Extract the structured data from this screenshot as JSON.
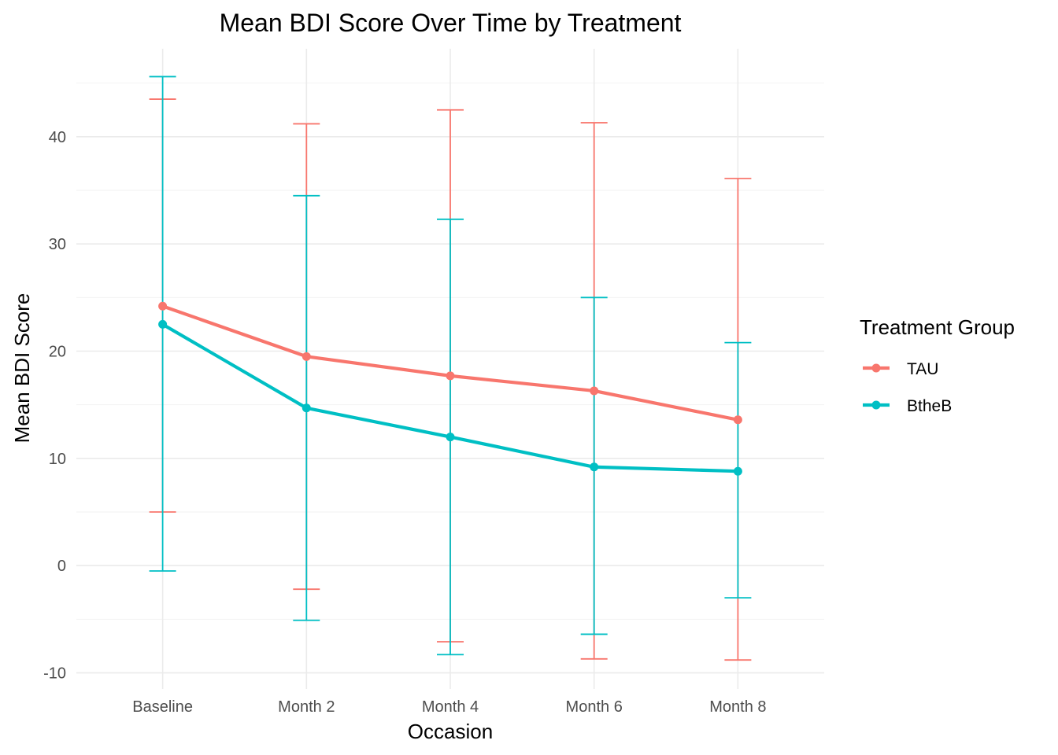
{
  "chart_data": {
    "type": "line",
    "title": "Mean BDI Score Over Time by Treatment",
    "xlabel": "Occasion",
    "ylabel": "Mean BDI Score",
    "categories": [
      "Baseline",
      "Month 2",
      "Month 4",
      "Month 6",
      "Month 8"
    ],
    "ylim": [
      -11.5,
      48.2
    ],
    "yticks": [
      -10,
      0,
      10,
      20,
      30,
      40
    ],
    "grid": true,
    "legend": {
      "title": "Treatment Group",
      "position": "right"
    },
    "series": [
      {
        "name": "TAU",
        "color": "#F8766D",
        "values": [
          24.2,
          19.5,
          17.7,
          16.3,
          13.6
        ],
        "error_low": [
          5.0,
          -2.2,
          -7.1,
          -8.7,
          -8.8
        ],
        "error_high": [
          43.5,
          41.2,
          42.5,
          41.3,
          36.1
        ]
      },
      {
        "name": "BtheB",
        "color": "#00BFC4",
        "values": [
          22.5,
          14.7,
          12.0,
          9.2,
          8.8
        ],
        "error_low": [
          -0.5,
          -5.1,
          -8.3,
          -6.4,
          -3.0
        ],
        "error_high": [
          45.6,
          34.5,
          32.3,
          25.0,
          20.8
        ]
      }
    ]
  }
}
